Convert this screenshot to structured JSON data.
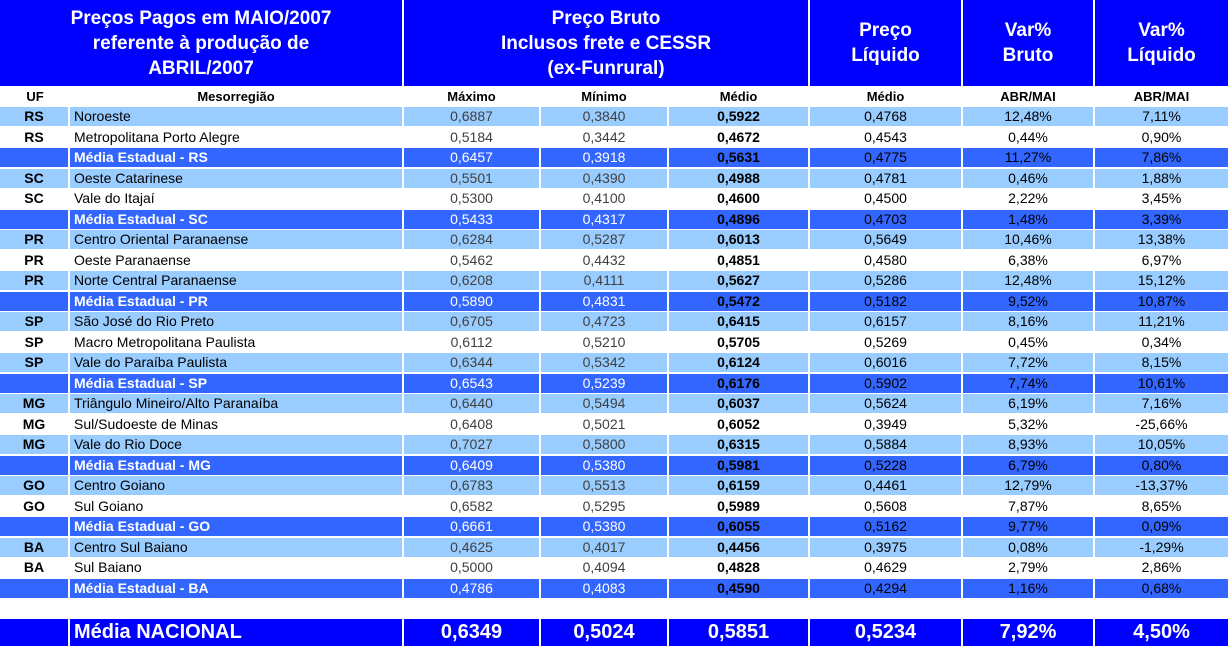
{
  "header": {
    "title_lines": [
      "Preços Pagos em MAIO/2007",
      "referente à produção de",
      "ABRIL/2007"
    ],
    "bruto_lines": [
      "Preço Bruto",
      "Inclusos frete e CESSR",
      "(ex-Funrural)"
    ],
    "liquido_lines": [
      "Preço",
      "Líquido"
    ],
    "var_bruto_lines": [
      "Var%",
      "Bruto"
    ],
    "var_liquido_lines": [
      "Var%",
      "Líquido"
    ]
  },
  "subheader": {
    "uf": "UF",
    "meso": "Mesorregião",
    "maximo": "Máximo",
    "minimo": "Mínimo",
    "medio": "Médio",
    "medio_liq": "Médio",
    "abr_mai_bruto": "ABR/MAI",
    "abr_mai_liq": "ABR/MAI"
  },
  "rows": [
    {
      "uf": "RS",
      "meso": "Noroeste",
      "max": "0,6887",
      "min": "0,3840",
      "med": "0,5922",
      "liq": "0,4768",
      "vb": "12,48%",
      "vl": "7,11%",
      "style": "light"
    },
    {
      "uf": "RS",
      "meso": "Metropolitana Porto Alegre",
      "max": "0,5184",
      "min": "0,3442",
      "med": "0,4672",
      "liq": "0,4543",
      "vb": "0,44%",
      "vl": "0,90%",
      "style": "white"
    },
    {
      "uf": "",
      "meso": "Média Estadual - RS",
      "max": "0,6457",
      "min": "0,3918",
      "med": "0,5631",
      "liq": "0,4775",
      "vb": "11,27%",
      "vl": "7,86%",
      "style": "avg"
    },
    {
      "uf": "SC",
      "meso": "Oeste Catarinese",
      "max": "0,5501",
      "min": "0,4390",
      "med": "0,4988",
      "liq": "0,4781",
      "vb": "0,46%",
      "vl": "1,88%",
      "style": "light"
    },
    {
      "uf": "SC",
      "meso": "Vale do Itajaí",
      "max": "0,5300",
      "min": "0,4100",
      "med": "0,4600",
      "liq": "0,4500",
      "vb": "2,22%",
      "vl": "3,45%",
      "style": "white"
    },
    {
      "uf": "",
      "meso": "Média Estadual - SC",
      "max": "0,5433",
      "min": "0,4317",
      "med": "0,4896",
      "liq": "0,4703",
      "vb": "1,48%",
      "vl": "3,39%",
      "style": "avg"
    },
    {
      "uf": "PR",
      "meso": "Centro Oriental Paranaense",
      "max": "0,6284",
      "min": "0,5287",
      "med": "0,6013",
      "liq": "0,5649",
      "vb": "10,46%",
      "vl": "13,38%",
      "style": "light"
    },
    {
      "uf": "PR",
      "meso": "Oeste Paranaense",
      "max": "0,5462",
      "min": "0,4432",
      "med": "0,4851",
      "liq": "0,4580",
      "vb": "6,38%",
      "vl": "6,97%",
      "style": "white"
    },
    {
      "uf": "PR",
      "meso": "Norte Central Paranaense",
      "max": "0,6208",
      "min": "0,4111",
      "med": "0,5627",
      "liq": "0,5286",
      "vb": "12,48%",
      "vl": "15,12%",
      "style": "light"
    },
    {
      "uf": "",
      "meso": "Média Estadual - PR",
      "max": "0,5890",
      "min": "0,4831",
      "med": "0,5472",
      "liq": "0,5182",
      "vb": "9,52%",
      "vl": "10,87%",
      "style": "avg"
    },
    {
      "uf": "SP",
      "meso": "São José do Rio Preto",
      "max": "0,6705",
      "min": "0,4723",
      "med": "0,6415",
      "liq": "0,6157",
      "vb": "8,16%",
      "vl": "11,21%",
      "style": "light"
    },
    {
      "uf": "SP",
      "meso": "Macro Metropolitana Paulista",
      "max": "0,6112",
      "min": "0,5210",
      "med": "0,5705",
      "liq": "0,5269",
      "vb": "0,45%",
      "vl": "0,34%",
      "style": "white"
    },
    {
      "uf": "SP",
      "meso": "Vale do Paraíba Paulista",
      "max": "0,6344",
      "min": "0,5342",
      "med": "0,6124",
      "liq": "0,6016",
      "vb": "7,72%",
      "vl": "8,15%",
      "style": "light"
    },
    {
      "uf": "",
      "meso": "Média Estadual - SP",
      "max": "0,6543",
      "min": "0,5239",
      "med": "0,6176",
      "liq": "0,5902",
      "vb": "7,74%",
      "vl": "10,61%",
      "style": "avg"
    },
    {
      "uf": "MG",
      "meso": "Triângulo Mineiro/Alto Paranaíba",
      "max": "0,6440",
      "min": "0,5494",
      "med": "0,6037",
      "liq": "0,5624",
      "vb": "6,19%",
      "vl": "7,16%",
      "style": "light"
    },
    {
      "uf": "MG",
      "meso": "Sul/Sudoeste de Minas",
      "max": "0,6408",
      "min": "0,5021",
      "med": "0,6052",
      "liq": "0,3949",
      "vb": "5,32%",
      "vl": "-25,66%",
      "style": "white"
    },
    {
      "uf": "MG",
      "meso": "Vale do Rio Doce",
      "max": "0,7027",
      "min": "0,5800",
      "med": "0,6315",
      "liq": "0,5884",
      "vb": "8,93%",
      "vl": "10,05%",
      "style": "light"
    },
    {
      "uf": "",
      "meso": "Média Estadual - MG",
      "max": "0,6409",
      "min": "0,5380",
      "med": "0,5981",
      "liq": "0,5228",
      "vb": "6,79%",
      "vl": "0,80%",
      "style": "avg"
    },
    {
      "uf": "GO",
      "meso": "Centro Goiano",
      "max": "0,6783",
      "min": "0,5513",
      "med": "0,6159",
      "liq": "0,4461",
      "vb": "12,79%",
      "vl": "-13,37%",
      "style": "light"
    },
    {
      "uf": "GO",
      "meso": "Sul Goiano",
      "max": "0,6582",
      "min": "0,5295",
      "med": "0,5989",
      "liq": "0,5608",
      "vb": "7,87%",
      "vl": "8,65%",
      "style": "white"
    },
    {
      "uf": "",
      "meso": "Média Estadual - GO",
      "max": "0,6661",
      "min": "0,5380",
      "med": "0,6055",
      "liq": "0,5162",
      "vb": "9,77%",
      "vl": "0,09%",
      "style": "avg"
    },
    {
      "uf": "BA",
      "meso": "Centro Sul Baiano",
      "max": "0,4625",
      "min": "0,4017",
      "med": "0,4456",
      "liq": "0,3975",
      "vb": "0,08%",
      "vl": "-1,29%",
      "style": "light"
    },
    {
      "uf": "BA",
      "meso": "Sul Baiano",
      "max": "0,5000",
      "min": "0,4094",
      "med": "0,4828",
      "liq": "0,4629",
      "vb": "2,79%",
      "vl": "2,86%",
      "style": "white"
    },
    {
      "uf": "",
      "meso": "Média Estadual - BA",
      "max": "0,4786",
      "min": "0,4083",
      "med": "0,4590",
      "liq": "0,4294",
      "vb": "1,16%",
      "vl": "0,68%",
      "style": "avg"
    }
  ],
  "national": {
    "label": "Média NACIONAL",
    "max": "0,6349",
    "min": "0,5024",
    "med": "0,5851",
    "liq": "0,5234",
    "vb": "7,92%",
    "vl": "4,50%"
  }
}
